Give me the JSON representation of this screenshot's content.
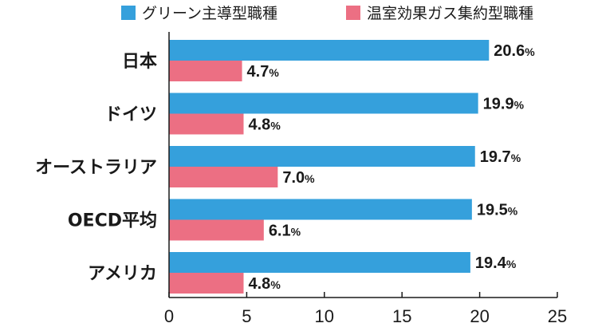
{
  "chart_data": {
    "type": "bar",
    "orientation": "horizontal",
    "title": "",
    "xlabel": "",
    "ylabel": "",
    "xlim": [
      0,
      25
    ],
    "xticks": [
      0,
      5,
      10,
      15,
      20,
      25
    ],
    "grid": false,
    "legend_position": "top-right",
    "value_suffix": "%",
    "categories": [
      "日本",
      "ドイツ",
      "オーストラリア",
      "OECD平均",
      "アメリカ"
    ],
    "series": [
      {
        "name": "グリーン主導型職種",
        "color": "#35a0dc",
        "values": [
          20.6,
          19.9,
          19.7,
          19.5,
          19.4
        ]
      },
      {
        "name": "温室効果ガス集約型職種",
        "color": "#ec6f83",
        "values": [
          4.7,
          4.8,
          7.0,
          6.1,
          4.8
        ]
      }
    ]
  }
}
